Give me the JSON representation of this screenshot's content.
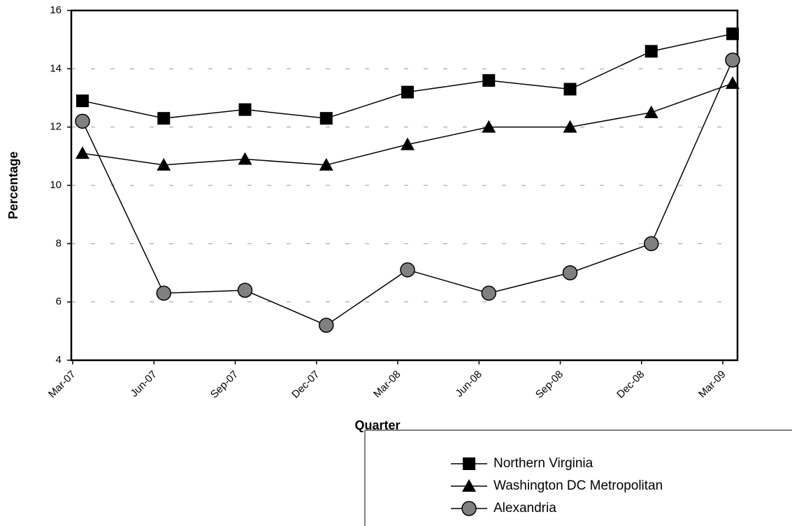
{
  "chart_data": {
    "type": "line",
    "x_label": "Quarter",
    "y_label": "Percentage",
    "categories": [
      "Mar-07",
      "Jun-07",
      "Sep-07",
      "Dec-07",
      "Mar-08",
      "Jun-08",
      "Sep-08",
      "Dec-08",
      "Mar-09"
    ],
    "series": [
      {
        "name": "Northern Virginia",
        "color": "#000000",
        "marker": "square",
        "marker_color": "#000000",
        "values": [
          12.9,
          12.3,
          12.6,
          12.3,
          13.2,
          13.6,
          13.3,
          14.6,
          15.2
        ]
      },
      {
        "name": "Washington DC Metropolitan",
        "color": "#000000",
        "marker": "triangle",
        "marker_color": "#000000",
        "values": [
          11.1,
          10.7,
          10.9,
          10.7,
          11.4,
          12.0,
          12.0,
          12.5,
          13.5
        ]
      },
      {
        "name": "Alexandria",
        "color": "#000000",
        "marker": "circle",
        "marker_color": "#808080",
        "values": [
          12.2,
          6.3,
          6.4,
          5.2,
          7.1,
          6.3,
          7.0,
          8.0,
          14.3
        ]
      }
    ],
    "ylim": [
      4,
      16
    ],
    "yticks": [
      4,
      6,
      8,
      10,
      12,
      14,
      16
    ],
    "grid": true,
    "legend": "lower right"
  }
}
